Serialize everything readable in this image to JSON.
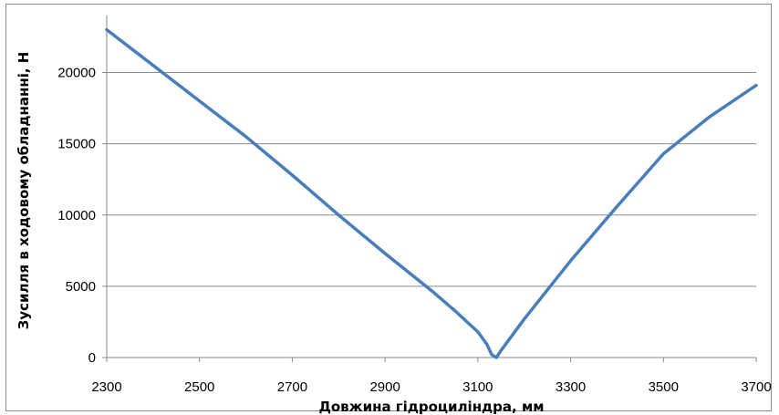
{
  "chart_data": {
    "type": "line",
    "title": "",
    "xlabel": "Довжина гідроциліндра, мм",
    "ylabel": "Зусилля в ходовому обладнанні, Н",
    "xlim": [
      2300,
      3700
    ],
    "ylim": [
      0,
      24000
    ],
    "x_ticks": [
      2300,
      2500,
      2700,
      2900,
      3100,
      3300,
      3500,
      3700
    ],
    "x_tick_labels": [
      "2300",
      "2500",
      "2700",
      "2900",
      "3100",
      "3300",
      "3500",
      "3700"
    ],
    "y_ticks": [
      0,
      5000,
      10000,
      15000,
      20000
    ],
    "y_tick_labels": [
      "0",
      "5000",
      "10000",
      "15000",
      "20000"
    ],
    "grid": "horizontal",
    "legend": "none",
    "line_color": "#4a7ebb",
    "series": [
      {
        "x": [
          2300,
          2400,
          2500,
          2600,
          2700,
          2800,
          2900,
          3000,
          3050,
          3100,
          3120,
          3130,
          3140,
          3150,
          3200,
          3300,
          3400,
          3500,
          3600,
          3700
        ],
        "values": [
          23000,
          20500,
          18000,
          15500,
          12800,
          10000,
          7300,
          4700,
          3300,
          1800,
          900,
          200,
          0,
          500,
          2700,
          6800,
          10600,
          14300,
          16900,
          19100
        ]
      }
    ]
  }
}
